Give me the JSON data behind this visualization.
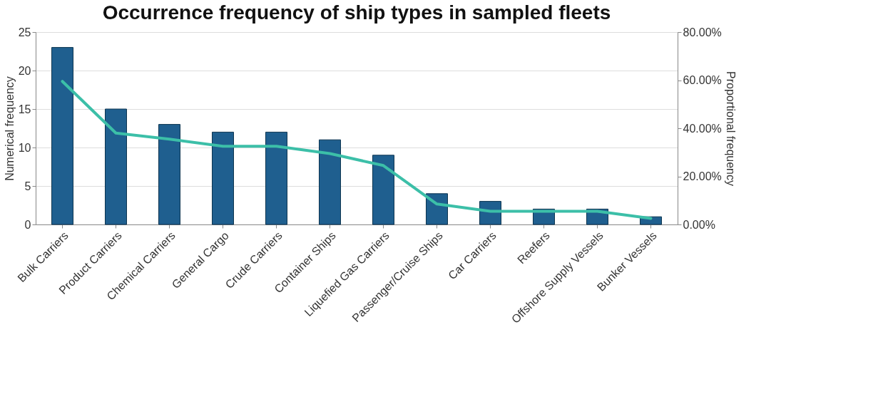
{
  "chart_data": {
    "type": "bar",
    "title": "Occurrence frequency of ship types in sampled fleets",
    "ylabel": "Numerical frequency",
    "y2label": "Proportional frequency",
    "categories": [
      "Bulk Carriers",
      "Product Carriers",
      "Chemical Carriers",
      "General Cargo",
      "Crude Carriers",
      "Container Ships",
      "Liquefied Gas Carriers",
      "Passenger/Cruise Ships",
      "Car Carriers",
      "Reefers",
      "Offshore Supply Vessels",
      "Bunker Vessels"
    ],
    "series": [
      {
        "color": "#1f5f8f",
        "values": [
          23,
          15,
          13,
          12,
          12,
          11,
          9,
          4,
          3,
          2,
          2,
          1
        ]
      },
      {
        "type": "line",
        "axis": "y2",
        "color": "#3cbfa8",
        "values": [
          59.5,
          38,
          35.5,
          32.5,
          32.5,
          29.5,
          24.5,
          8.5,
          5.5,
          5.5,
          5.5,
          2.5
        ]
      }
    ],
    "ylim": [
      0,
      25
    ],
    "yticks": [
      0,
      5,
      10,
      15,
      20,
      25
    ],
    "y2lim": [
      0,
      80
    ],
    "y2ticks": [
      {
        "value": 0,
        "label": "0.00%"
      },
      {
        "value": 20,
        "label": "20.00%"
      },
      {
        "value": 40,
        "label": "40.00%"
      },
      {
        "value": 60,
        "label": "60.00%"
      },
      {
        "value": 80,
        "label": "80.00%"
      }
    ],
    "grid": "y"
  }
}
